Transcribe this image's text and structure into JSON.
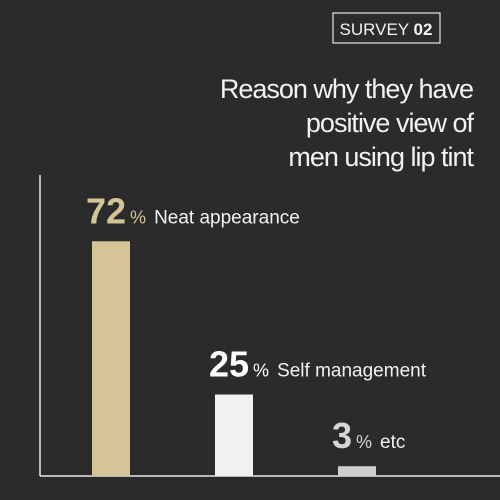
{
  "chart_data": {
    "type": "bar",
    "badge": {
      "label": "SURVEY",
      "number": "02"
    },
    "title": [
      "Reason why they have",
      "positive view of",
      "men using lip tint"
    ],
    "categories": [
      "Neat appearance",
      "Self management",
      "etc"
    ],
    "values": [
      72,
      25,
      3
    ],
    "unit": "%",
    "colors": [
      "#d5c596",
      "#f1f1f1",
      "#cfcfcf"
    ],
    "label_colors": [
      "#d5c596",
      "#ffffff",
      "#d6d6d6"
    ],
    "ylim": [
      0,
      100
    ]
  }
}
